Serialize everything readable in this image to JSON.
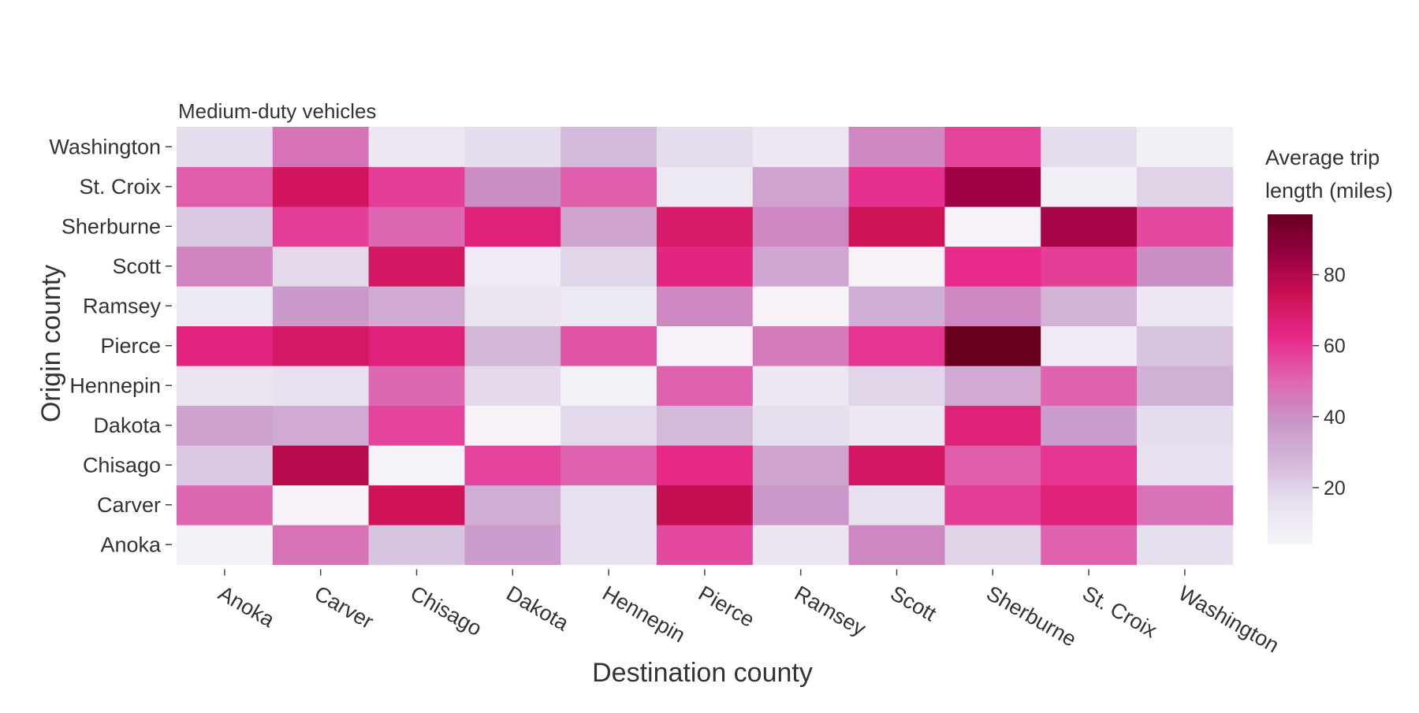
{
  "chart_data": {
    "type": "heatmap",
    "title": "Medium-duty vehicles",
    "xlabel": "Destination county",
    "ylabel": "Origin county",
    "x_categories": [
      "Anoka",
      "Carver",
      "Chisago",
      "Dakota",
      "Hennepin",
      "Pierce",
      "Ramsey",
      "Scott",
      "Sherburne",
      "St. Croix",
      "Washington"
    ],
    "y_categories": [
      "Anoka",
      "Carver",
      "Chisago",
      "Dakota",
      "Hennepin",
      "Pierce",
      "Ramsey",
      "Scott",
      "Sherburne",
      "St. Croix",
      "Washington"
    ],
    "values": [
      [
        6,
        47,
        24,
        36,
        15,
        56,
        13,
        42,
        20,
        51,
        16
      ],
      [
        50,
        5,
        73,
        31,
        15,
        76,
        38,
        15,
        58,
        66,
        47
      ],
      [
        23,
        79,
        4,
        57,
        51,
        63,
        34,
        71,
        52,
        60,
        15
      ],
      [
        35,
        32,
        57,
        5,
        18,
        27,
        16,
        12,
        66,
        36,
        17
      ],
      [
        14,
        15,
        50,
        18,
        6,
        51,
        12,
        19,
        32,
        51,
        30
      ],
      [
        64,
        70,
        66,
        28,
        54,
        5,
        45,
        60,
        97,
        10,
        24
      ],
      [
        11,
        37,
        32,
        14,
        11,
        42,
        5,
        31,
        42,
        29,
        12
      ],
      [
        43,
        18,
        71,
        10,
        19,
        64,
        33,
        5,
        62,
        58,
        40
      ],
      [
        23,
        58,
        50,
        66,
        34,
        69,
        42,
        74,
        5,
        82,
        56
      ],
      [
        52,
        72,
        58,
        40,
        52,
        11,
        34,
        61,
        84,
        7,
        20
      ],
      [
        17,
        47,
        12,
        17,
        27,
        17,
        12,
        42,
        57,
        17,
        7
      ]
    ],
    "colorbar": {
      "label_lines": [
        "Average trip",
        "length (miles)"
      ],
      "min": 4,
      "max": 97,
      "ticks": [
        20,
        40,
        60,
        80
      ]
    },
    "colormap": [
      "#f7f4f9",
      "#e7e1ef",
      "#d4b9da",
      "#c994c7",
      "#df65b0",
      "#e7298a",
      "#ce1256",
      "#980043",
      "#67001f"
    ],
    "legend": "right",
    "grid": false
  }
}
